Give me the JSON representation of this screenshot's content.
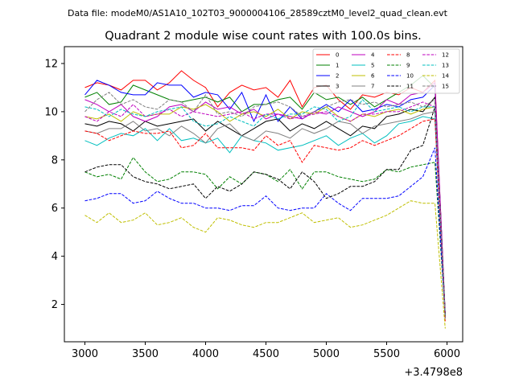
{
  "figure": {
    "suptitle": "Data file: modeM0/AS1A10_102T03_9000004106_28589cztM0_level2_quad_clean.evt",
    "title": "Quadrant 2 module wise count rates with 100.0s bins.",
    "offset_label": "+3.4798e8"
  },
  "chart_data": {
    "type": "line",
    "title": "Quadrant 2 module wise count rates with 100.0s bins.",
    "xlabel": "",
    "ylabel": "",
    "x_offset": 347980000,
    "xlim": [
      2830,
      6130
    ],
    "ylim": [
      0.45,
      12.7
    ],
    "xticks": [
      3000,
      3500,
      4000,
      4500,
      5000,
      5500,
      6000
    ],
    "yticks": [
      2,
      4,
      6,
      8,
      10,
      12
    ],
    "grid": false,
    "legend": {
      "location": "top-right",
      "columns": 4
    },
    "x": [
      3000,
      3100,
      3200,
      3300,
      3400,
      3500,
      3600,
      3700,
      3800,
      3900,
      4000,
      4100,
      4200,
      4300,
      4400,
      4500,
      4600,
      4700,
      4800,
      4900,
      5000,
      5100,
      5200,
      5300,
      5400,
      5500,
      5600,
      5700,
      5800,
      5900,
      5985
    ],
    "series": [
      {
        "name": "0",
        "color": "#ff0000",
        "dash": "solid",
        "values": [
          11.0,
          11.2,
          11.1,
          10.9,
          11.3,
          11.3,
          10.9,
          11.2,
          11.7,
          11.3,
          11.0,
          10.2,
          10.8,
          11.1,
          10.9,
          11.0,
          10.6,
          11.3,
          10.2,
          11.0,
          11.1,
          10.5,
          10.1,
          10.7,
          10.6,
          10.8,
          10.7,
          11.0,
          10.8,
          11.3,
          1.4
        ]
      },
      {
        "name": "1",
        "color": "#008000",
        "dash": "solid",
        "values": [
          10.6,
          10.8,
          10.3,
          10.4,
          11.1,
          10.9,
          10.7,
          10.5,
          10.4,
          10.5,
          10.6,
          10.4,
          10.6,
          10.0,
          10.3,
          10.3,
          10.5,
          10.6,
          10.1,
          10.8,
          10.5,
          10.6,
          10.3,
          10.6,
          10.2,
          10.5,
          10.8,
          11.1,
          11.5,
          11.0,
          1.6
        ]
      },
      {
        "name": "2",
        "color": "#0000ff",
        "dash": "solid",
        "values": [
          10.7,
          11.3,
          11.1,
          10.8,
          10.7,
          10.7,
          11.2,
          11.1,
          11.1,
          10.6,
          10.8,
          10.7,
          10.1,
          10.8,
          9.6,
          10.7,
          9.6,
          10.2,
          9.7,
          10.0,
          10.3,
          10.0,
          10.5,
          10.0,
          10.1,
          10.3,
          10.2,
          10.5,
          10.6,
          11.1,
          1.5
        ]
      },
      {
        "name": "3",
        "color": "#000000",
        "dash": "solid",
        "values": [
          9.5,
          9.4,
          9.6,
          9.5,
          9.2,
          9.6,
          9.4,
          9.5,
          9.6,
          9.7,
          9.2,
          9.6,
          9.3,
          9.0,
          9.3,
          9.6,
          9.7,
          9.2,
          9.5,
          9.3,
          9.6,
          9.3,
          9.0,
          9.4,
          9.3,
          9.8,
          9.9,
          10.1,
          10.0,
          10.6,
          1.5
        ]
      },
      {
        "name": "4",
        "color": "#bf00bf",
        "dash": "solid",
        "values": [
          10.5,
          10.3,
          10.0,
          10.3,
          9.8,
          9.6,
          9.8,
          10.2,
          10.3,
          10.0,
          10.4,
          10.1,
          10.2,
          9.9,
          10.1,
          9.7,
          9.9,
          9.8,
          9.7,
          10.0,
          9.9,
          10.2,
          10.0,
          9.8,
          10.0,
          10.5,
          10.3,
          10.7,
          10.8,
          11.2,
          1.6
        ]
      },
      {
        "name": "5",
        "color": "#00bfbf",
        "dash": "solid",
        "values": [
          8.8,
          8.6,
          8.9,
          9.1,
          9.0,
          9.3,
          8.8,
          9.3,
          8.8,
          8.9,
          8.7,
          8.9,
          8.3,
          9.0,
          8.8,
          8.7,
          8.4,
          8.5,
          8.6,
          8.8,
          9.0,
          8.6,
          8.9,
          9.1,
          8.7,
          9.0,
          9.5,
          9.6,
          9.8,
          9.7,
          1.5
        ]
      },
      {
        "name": "6",
        "color": "#bfbf00",
        "dash": "solid",
        "values": [
          9.8,
          9.7,
          9.9,
          9.6,
          10.0,
          9.8,
          9.9,
          9.9,
          10.2,
          10.1,
          10.3,
          10.0,
          9.6,
          9.9,
          10.0,
          9.8,
          10.1,
          9.7,
          10.0,
          9.9,
          10.2,
          9.8,
          9.6,
          9.9,
          9.8,
          10.0,
          10.1,
          9.9,
          10.1,
          10.2,
          1.6
        ]
      },
      {
        "name": "7",
        "color": "#808080",
        "dash": "solid",
        "values": [
          9.2,
          9.1,
          9.3,
          9.3,
          9.6,
          9.2,
          9.3,
          9.0,
          9.4,
          9.1,
          8.7,
          9.3,
          9.5,
          9.0,
          8.8,
          9.2,
          9.1,
          8.9,
          9.3,
          9.1,
          9.3,
          9.6,
          9.5,
          9.1,
          9.4,
          9.5,
          9.6,
          9.7,
          9.9,
          10.0,
          1.4
        ]
      },
      {
        "name": "8",
        "color": "#ff0000",
        "dash": "dashed",
        "values": [
          9.2,
          9.1,
          8.8,
          9.0,
          9.2,
          9.1,
          9.1,
          9.2,
          8.5,
          8.6,
          9.1,
          8.5,
          8.5,
          8.5,
          8.4,
          9.0,
          8.6,
          8.8,
          7.9,
          8.6,
          8.5,
          8.4,
          8.5,
          8.8,
          8.6,
          8.8,
          9.0,
          9.3,
          9.6,
          9.7,
          1.3
        ]
      },
      {
        "name": "9",
        "color": "#008000",
        "dash": "dashed",
        "values": [
          7.5,
          7.3,
          7.4,
          7.2,
          8.1,
          7.5,
          7.1,
          7.2,
          7.5,
          7.5,
          7.4,
          6.8,
          7.3,
          7.0,
          7.5,
          7.4,
          7.1,
          7.6,
          6.8,
          7.5,
          7.5,
          7.3,
          7.2,
          7.1,
          7.2,
          7.6,
          7.5,
          7.7,
          7.8,
          7.9,
          1.5
        ]
      },
      {
        "name": "10",
        "color": "#0000ff",
        "dash": "dashed",
        "values": [
          6.3,
          6.4,
          6.6,
          6.6,
          6.2,
          6.3,
          6.7,
          6.4,
          6.2,
          6.2,
          6.0,
          6.0,
          5.9,
          6.1,
          6.1,
          6.5,
          6.0,
          5.9,
          6.0,
          6.0,
          6.6,
          6.2,
          5.9,
          6.4,
          6.4,
          6.4,
          6.5,
          6.9,
          7.3,
          8.5,
          1.5
        ]
      },
      {
        "name": "11",
        "color": "#000000",
        "dash": "dashed",
        "values": [
          7.5,
          7.7,
          7.8,
          7.8,
          7.3,
          7.1,
          7.0,
          6.8,
          6.9,
          7.0,
          6.4,
          6.9,
          6.7,
          7.0,
          7.5,
          7.4,
          7.2,
          6.8,
          7.5,
          7.1,
          6.4,
          6.6,
          6.9,
          6.9,
          7.1,
          7.6,
          7.6,
          8.4,
          8.6,
          10.2,
          1.6
        ]
      },
      {
        "name": "12",
        "color": "#bf00bf",
        "dash": "dashed",
        "values": [
          9.8,
          9.6,
          10.0,
          9.8,
          10.3,
          9.8,
          9.9,
          10.1,
          9.8,
          10.0,
          9.9,
          9.8,
          9.9,
          10.0,
          9.7,
          9.9,
          9.9,
          9.7,
          9.8,
          9.9,
          10.0,
          9.8,
          9.6,
          9.9,
          9.9,
          10.0,
          10.0,
          10.2,
          10.4,
          10.2,
          1.6
        ]
      },
      {
        "name": "13",
        "color": "#00bfbf",
        "dash": "dashed",
        "values": [
          10.2,
          10.1,
          9.8,
          10.1,
          9.9,
          9.8,
          10.0,
          10.1,
          10.2,
          9.6,
          9.4,
          9.5,
          9.8,
          9.6,
          9.4,
          9.9,
          9.7,
          9.9,
          9.9,
          10.2,
          10.1,
          9.6,
          9.8,
          10.5,
          10.0,
          10.1,
          10.2,
          10.0,
          10.2,
          10.2,
          1.5
        ]
      },
      {
        "name": "14",
        "color": "#bfbf00",
        "dash": "dashed",
        "values": [
          5.7,
          5.4,
          5.8,
          5.4,
          5.5,
          5.8,
          5.3,
          5.4,
          5.6,
          5.2,
          5.0,
          5.6,
          5.5,
          5.3,
          5.2,
          5.4,
          5.4,
          5.6,
          5.8,
          5.4,
          5.5,
          5.6,
          5.2,
          5.3,
          5.5,
          5.7,
          6.0,
          6.3,
          6.2,
          6.2,
          1.0
        ]
      },
      {
        "name": "15",
        "color": "#808080",
        "dash": "dashed",
        "values": [
          10.0,
          10.5,
          10.8,
          10.3,
          10.5,
          10.2,
          10.1,
          10.5,
          10.4,
          10.0,
          10.7,
          9.9,
          10.0,
          9.8,
          10.2,
          10.3,
          10.4,
          10.2,
          9.8,
          10.0,
          10.2,
          10.4,
          10.5,
          10.3,
          10.4,
          10.2,
          10.3,
          10.4,
          10.2,
          10.5,
          1.4
        ]
      }
    ]
  }
}
